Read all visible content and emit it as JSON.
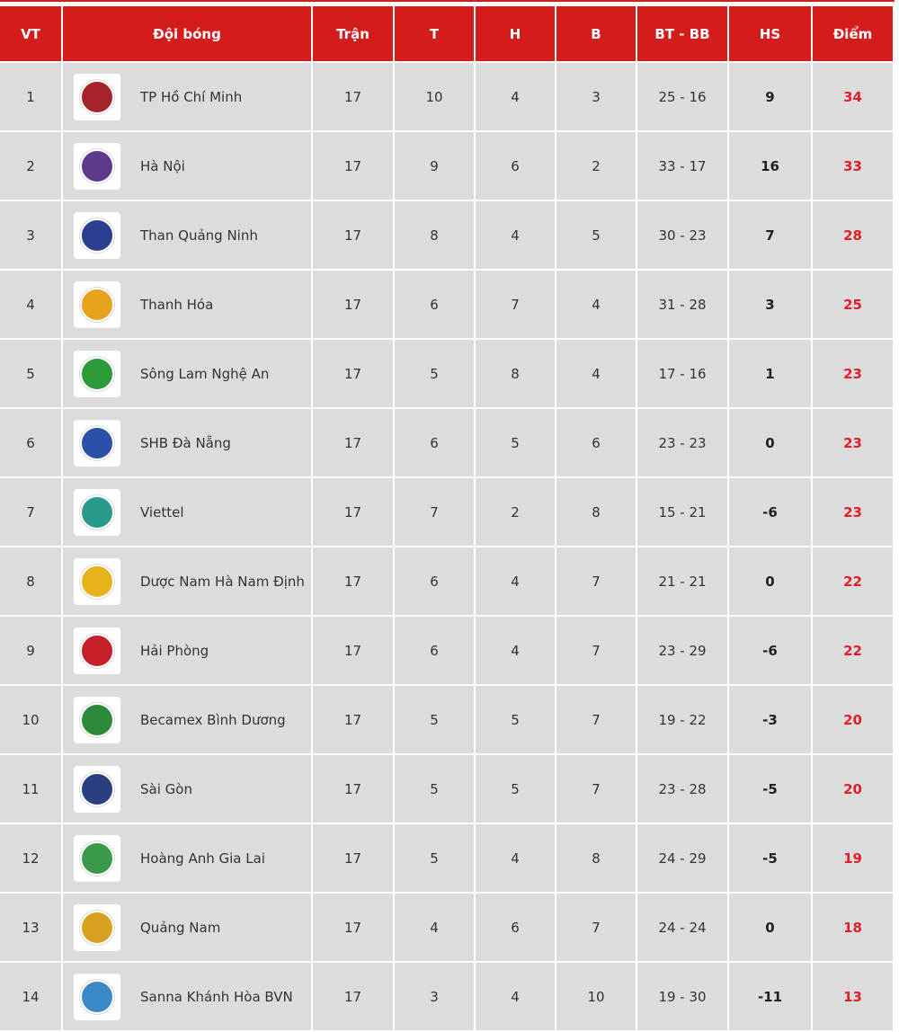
{
  "headers": {
    "pos": "VT",
    "team": "Đội bóng",
    "played": "Trận",
    "won": "T",
    "drawn": "H",
    "lost": "B",
    "goals": "BT - BB",
    "gd": "HS",
    "points": "Điểm"
  },
  "colors": {
    "header": "#d41c1c",
    "row": "#dcdcdc",
    "points": "#e0202a"
  },
  "rows": [
    {
      "pos": "1",
      "team": "TP Hồ Chí Minh",
      "played": "17",
      "won": "10",
      "drawn": "4",
      "lost": "3",
      "goals": "25 - 16",
      "gd": "9",
      "points": "34",
      "logo": "#a8222a"
    },
    {
      "pos": "2",
      "team": "Hà Nội",
      "played": "17",
      "won": "9",
      "drawn": "6",
      "lost": "2",
      "goals": "33 - 17",
      "gd": "16",
      "points": "33",
      "logo": "#5b3a8c"
    },
    {
      "pos": "3",
      "team": "Than Quảng Ninh",
      "played": "17",
      "won": "8",
      "drawn": "4",
      "lost": "5",
      "goals": "30 - 23",
      "gd": "7",
      "points": "28",
      "logo": "#2a3f8f"
    },
    {
      "pos": "4",
      "team": "Thanh Hóa",
      "played": "17",
      "won": "6",
      "drawn": "7",
      "lost": "4",
      "goals": "31 - 28",
      "gd": "3",
      "points": "25",
      "logo": "#e8a21c"
    },
    {
      "pos": "5",
      "team": "Sông Lam Nghệ An",
      "played": "17",
      "won": "5",
      "drawn": "8",
      "lost": "4",
      "goals": "17 - 16",
      "gd": "1",
      "points": "23",
      "logo": "#2c9a3a"
    },
    {
      "pos": "6",
      "team": "SHB Đà Nẵng",
      "played": "17",
      "won": "6",
      "drawn": "5",
      "lost": "6",
      "goals": "23 - 23",
      "gd": "0",
      "points": "23",
      "logo": "#2c4fa8"
    },
    {
      "pos": "7",
      "team": "Viettel",
      "played": "17",
      "won": "7",
      "drawn": "2",
      "lost": "8",
      "goals": "15 - 21",
      "gd": "-6",
      "points": "23",
      "logo": "#2a9a8a"
    },
    {
      "pos": "8",
      "team": "Dược Nam Hà Nam Định",
      "played": "17",
      "won": "6",
      "drawn": "4",
      "lost": "7",
      "goals": "21 - 21",
      "gd": "0",
      "points": "22",
      "logo": "#e8b21c"
    },
    {
      "pos": "9",
      "team": "Hải Phòng",
      "played": "17",
      "won": "6",
      "drawn": "4",
      "lost": "7",
      "goals": "23 - 29",
      "gd": "-6",
      "points": "22",
      "logo": "#c8202a"
    },
    {
      "pos": "10",
      "team": "Becamex Bình Dương",
      "played": "17",
      "won": "5",
      "drawn": "5",
      "lost": "7",
      "goals": "19 - 22",
      "gd": "-3",
      "points": "20",
      "logo": "#2c8a3a"
    },
    {
      "pos": "11",
      "team": "Sài Gòn",
      "played": "17",
      "won": "5",
      "drawn": "5",
      "lost": "7",
      "goals": "23 - 28",
      "gd": "-5",
      "points": "20",
      "logo": "#2a3f7f"
    },
    {
      "pos": "12",
      "team": "Hoàng Anh Gia Lai",
      "played": "17",
      "won": "5",
      "drawn": "4",
      "lost": "8",
      "goals": "24 - 29",
      "gd": "-5",
      "points": "19",
      "logo": "#3a9a4a"
    },
    {
      "pos": "13",
      "team": "Quảng Nam",
      "played": "17",
      "won": "4",
      "drawn": "6",
      "lost": "7",
      "goals": "24 - 24",
      "gd": "0",
      "points": "18",
      "logo": "#d8a020"
    },
    {
      "pos": "14",
      "team": "Sanna Khánh Hòa BVN",
      "played": "17",
      "won": "3",
      "drawn": "4",
      "lost": "10",
      "goals": "19 - 30",
      "gd": "-11",
      "points": "13",
      "logo": "#3a8ac8"
    }
  ]
}
